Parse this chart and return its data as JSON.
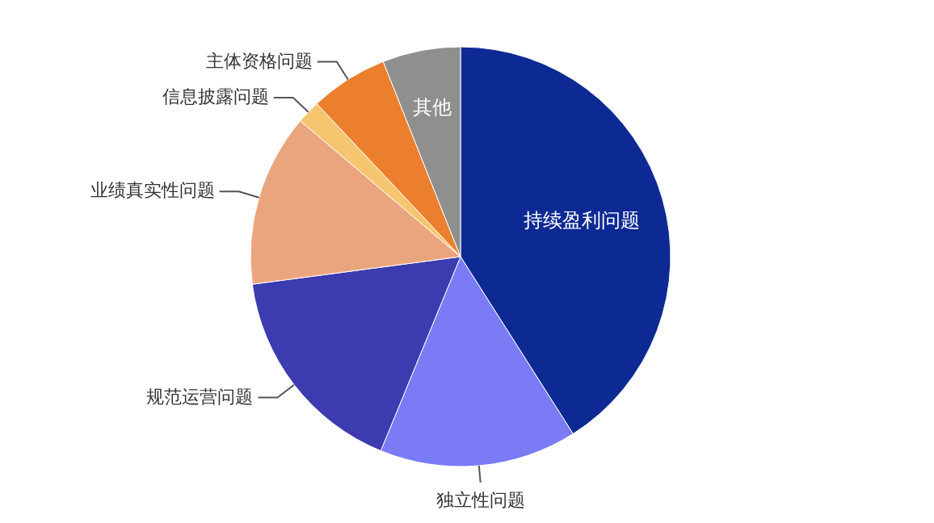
{
  "chart_data": {
    "type": "pie",
    "categories": [
      "持续盈利问题",
      "独立性问题",
      "规范运营问题",
      "业绩真实性问题",
      "信息披露问题",
      "主体资格问题",
      "其他"
    ],
    "values": [
      41,
      15.2,
      16.7,
      13.3,
      1.8,
      6,
      6
    ],
    "colors": [
      "#0d2a94",
      "#7b7bf5",
      "#3d3bb0",
      "#eba57e",
      "#f6c56f",
      "#ec7f2d",
      "#8f8f8f"
    ]
  }
}
